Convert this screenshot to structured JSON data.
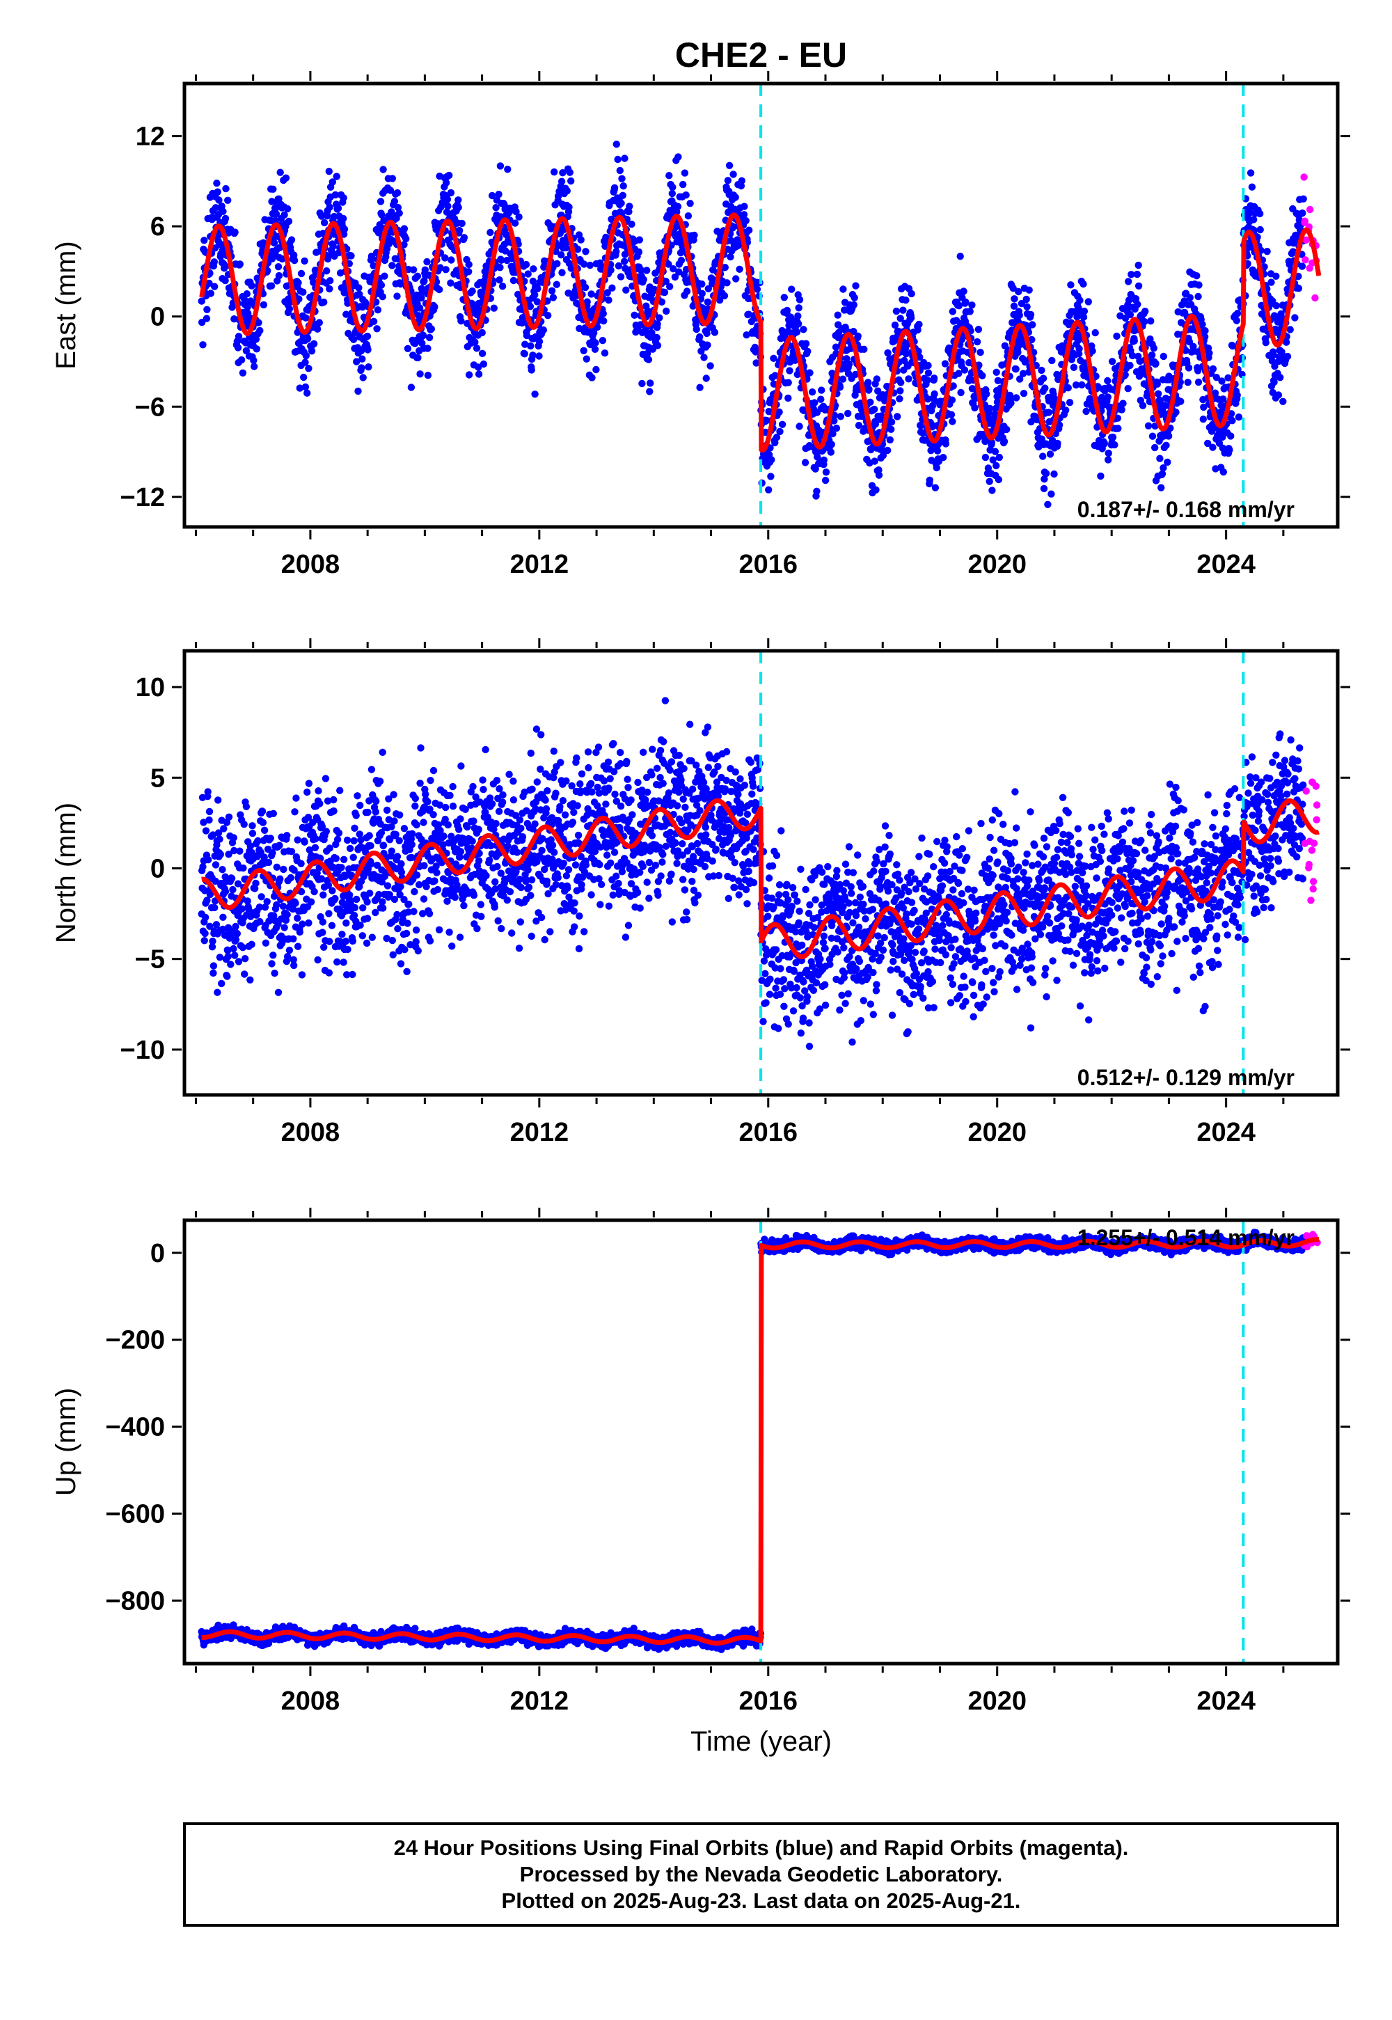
{
  "chart_data": [
    {
      "type": "scatter",
      "title": "CHE2 - EU",
      "ylabel": "East (mm)",
      "xlabel": "",
      "xlim": [
        2005.8,
        2025.95
      ],
      "ylim": [
        -14,
        15.5
      ],
      "xticks": [
        2008,
        2012,
        2016,
        2020,
        2024
      ],
      "xtick_labels": [
        "2008",
        "2012",
        "2016",
        "2020",
        "2024"
      ],
      "yticks": [
        12,
        6,
        0,
        -6,
        -12
      ],
      "ytick_labels": [
        "12",
        "6",
        "0",
        "-6",
        "-12"
      ],
      "rate_text": "0.187+/- 0.168 mm/yr",
      "offset_lines": [
        2015.87,
        2024.3
      ],
      "data_start": 2006.1,
      "data_end": 2025.6,
      "rapid_start": 2025.35,
      "model_segments": [
        {
          "start": 2006.1,
          "end": 2015.87,
          "level_start": 2.4,
          "level_end": 3.2,
          "amplitude": 3.6,
          "phase_peak": 0.4
        },
        {
          "start": 2015.87,
          "end": 2024.3,
          "level_start": -5.2,
          "level_end": -3.5,
          "amplitude": 3.7,
          "phase_peak": 0.4
        },
        {
          "start": 2024.3,
          "end": 2025.62,
          "level_start": 1.8,
          "level_end": 2.0,
          "amplitude": 3.8,
          "phase_peak": 0.4
        }
      ],
      "scatter_noise": 1.8,
      "colors": {
        "final": "#0000ff",
        "rapid": "#ff00ff",
        "model": "#ff0000",
        "offset": "#00e5ee"
      }
    },
    {
      "type": "scatter",
      "title": "",
      "ylabel": "North (mm)",
      "xlabel": "",
      "xlim": [
        2005.8,
        2025.95
      ],
      "ylim": [
        -12.5,
        12
      ],
      "xticks": [
        2008,
        2012,
        2016,
        2020,
        2024
      ],
      "xtick_labels": [
        "2008",
        "2012",
        "2016",
        "2020",
        "2024"
      ],
      "yticks": [
        10,
        5,
        0,
        -5,
        -10
      ],
      "ytick_labels": [
        "10",
        "5",
        "0",
        "-5",
        "-10"
      ],
      "rate_text": "0.512+/- 0.129 mm/yr",
      "offset_lines": [
        2015.87,
        2024.3
      ],
      "data_start": 2006.1,
      "data_end": 2025.6,
      "rapid_start": 2025.35,
      "model_segments": [
        {
          "start": 2006.1,
          "end": 2015.87,
          "level_start": -1.5,
          "level_end": 3.2,
          "amplitude": 0.9,
          "phase_peak": 0.1
        },
        {
          "start": 2015.87,
          "end": 2024.3,
          "level_start": -4.2,
          "level_end": -0.5,
          "amplitude": 1.0,
          "phase_peak": 0.1
        },
        {
          "start": 2024.3,
          "end": 2025.62,
          "level_start": 2.3,
          "level_end": 3.0,
          "amplitude": 1.0,
          "phase_peak": 0.1
        }
      ],
      "scatter_noise": 2.2,
      "colors": {
        "final": "#0000ff",
        "rapid": "#ff00ff",
        "model": "#ff0000",
        "offset": "#00e5ee"
      }
    },
    {
      "type": "scatter",
      "title": "",
      "ylabel": "Up (mm)",
      "xlabel": "Time (year)",
      "xlim": [
        2005.8,
        2025.95
      ],
      "ylim": [
        -945,
        75
      ],
      "xticks": [
        2008,
        2012,
        2016,
        2020,
        2024
      ],
      "xtick_labels": [
        "2008",
        "2012",
        "2016",
        "2020",
        "2024"
      ],
      "yticks": [
        0,
        -200,
        -400,
        -600,
        -800
      ],
      "ytick_labels": [
        "0",
        "-200",
        "-400",
        "-600",
        "-800"
      ],
      "rate_text": "1.255+/- 0.514 mm/yr",
      "offset_lines": [
        2015.87,
        2024.3
      ],
      "data_start": 2006.1,
      "data_end": 2025.6,
      "rapid_start": 2025.35,
      "model_segments": [
        {
          "start": 2006.1,
          "end": 2015.87,
          "level_start": -878,
          "level_end": -892,
          "amplitude": 7,
          "phase_peak": 0.6
        },
        {
          "start": 2015.87,
          "end": 2024.3,
          "level_start": 18,
          "level_end": 20,
          "amplitude": 7,
          "phase_peak": 0.6
        },
        {
          "start": 2024.3,
          "end": 2025.62,
          "level_start": 20,
          "level_end": 24,
          "amplitude": 7,
          "phase_peak": 0.6
        }
      ],
      "scatter_noise": 7,
      "colors": {
        "final": "#0000ff",
        "rapid": "#ff00ff",
        "model": "#ff0000",
        "offset": "#00e5ee"
      }
    }
  ],
  "footer": {
    "line1": "24 Hour Positions Using Final Orbits (blue) and Rapid Orbits (magenta).",
    "line2": "Processed by the Nevada Geodetic Laboratory.",
    "line3": "Plotted on 2025-Aug-23. Last data on 2025-Aug-21."
  }
}
